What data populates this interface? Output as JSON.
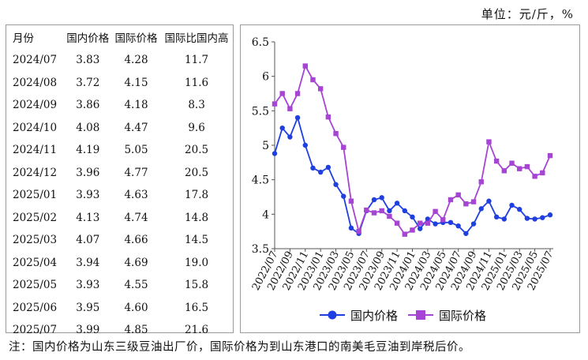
{
  "unit_label": "单位：元/斤，%",
  "table": {
    "headers": [
      "月份",
      "国内价格",
      "国际价格",
      "国际比国内高"
    ],
    "rows": [
      [
        "2024/07",
        "3.83",
        "4.28",
        "11.7"
      ],
      [
        "2024/08",
        "3.72",
        "4.15",
        "11.6"
      ],
      [
        "2024/09",
        "3.86",
        "4.18",
        "8.3"
      ],
      [
        "2024/10",
        "4.08",
        "4.47",
        "9.6"
      ],
      [
        "2024/11",
        "4.19",
        "5.05",
        "20.5"
      ],
      [
        "2024/12",
        "3.96",
        "4.77",
        "20.5"
      ],
      [
        "2025/01",
        "3.93",
        "4.63",
        "17.8"
      ],
      [
        "2025/02",
        "4.13",
        "4.74",
        "14.8"
      ],
      [
        "2025/03",
        "4.07",
        "4.66",
        "14.5"
      ],
      [
        "2025/04",
        "3.94",
        "4.69",
        "19.0"
      ],
      [
        "2025/05",
        "3.93",
        "4.55",
        "15.8"
      ],
      [
        "2025/06",
        "3.95",
        "4.60",
        "16.5"
      ],
      [
        "2025/07",
        "3.99",
        "4.85",
        "21.6"
      ]
    ]
  },
  "note": "注：国内价格为山东三级豆油出厂价，国际价格为到山东港口的南美毛豆油到岸税后价。",
  "chart_data": {
    "type": "line",
    "title": "",
    "xlabel": "",
    "ylabel": "",
    "ylim": [
      3.5,
      6.5
    ],
    "yticks": [
      "3.5",
      "4",
      "4.5",
      "5",
      "5.5",
      "6",
      "6.5"
    ],
    "grid": false,
    "legend_position": "bottom",
    "x": [
      "2022/07",
      "2022/08",
      "2022/09",
      "2022/10",
      "2022/11",
      "2022/12",
      "2023/01",
      "2023/02",
      "2023/03",
      "2023/04",
      "2023/05",
      "2023/06",
      "2023/07",
      "2023/08",
      "2023/09",
      "2023/10",
      "2023/11",
      "2023/12",
      "2024/01",
      "2024/02",
      "2024/03",
      "2024/04",
      "2024/05",
      "2024/06",
      "2024/07",
      "2024/08",
      "2024/09",
      "2024/10",
      "2024/11",
      "2024/12",
      "2025/01",
      "2025/02",
      "2025/03",
      "2025/04",
      "2025/05",
      "2025/06",
      "2025/07"
    ],
    "xtick_labels": [
      "2022/07",
      "2022/09",
      "2022/11",
      "2023/01",
      "2023/03",
      "2023/05",
      "2023/07",
      "2023/09",
      "2023/11",
      "2024/01",
      "2024/03",
      "2024/05",
      "2024/07",
      "2024/09",
      "2024/11",
      "2025/01",
      "2025/03",
      "2025/05",
      "2025/07"
    ],
    "series": [
      {
        "name": "国内价格",
        "color": "#1f3fe0",
        "marker": "circle",
        "values": [
          4.88,
          5.25,
          5.12,
          5.4,
          5.0,
          4.67,
          4.61,
          4.68,
          4.43,
          4.26,
          3.8,
          3.72,
          4.05,
          4.21,
          4.24,
          4.05,
          4.16,
          4.05,
          3.96,
          3.79,
          3.93,
          3.86,
          3.88,
          3.88,
          3.83,
          3.72,
          3.86,
          4.08,
          4.19,
          3.96,
          3.93,
          4.13,
          4.07,
          3.94,
          3.93,
          3.95,
          3.99
        ]
      },
      {
        "name": "国际价格",
        "color": "#a644d4",
        "marker": "square",
        "values": [
          5.6,
          5.75,
          5.53,
          5.75,
          6.15,
          5.95,
          5.82,
          5.41,
          5.17,
          4.97,
          4.19,
          3.75,
          4.06,
          4.02,
          4.05,
          3.97,
          3.87,
          3.71,
          3.77,
          3.87,
          3.87,
          4.04,
          3.92,
          4.21,
          4.28,
          4.15,
          4.18,
          4.47,
          5.05,
          4.77,
          4.63,
          4.74,
          4.66,
          4.69,
          4.55,
          4.6,
          4.85
        ]
      }
    ]
  }
}
